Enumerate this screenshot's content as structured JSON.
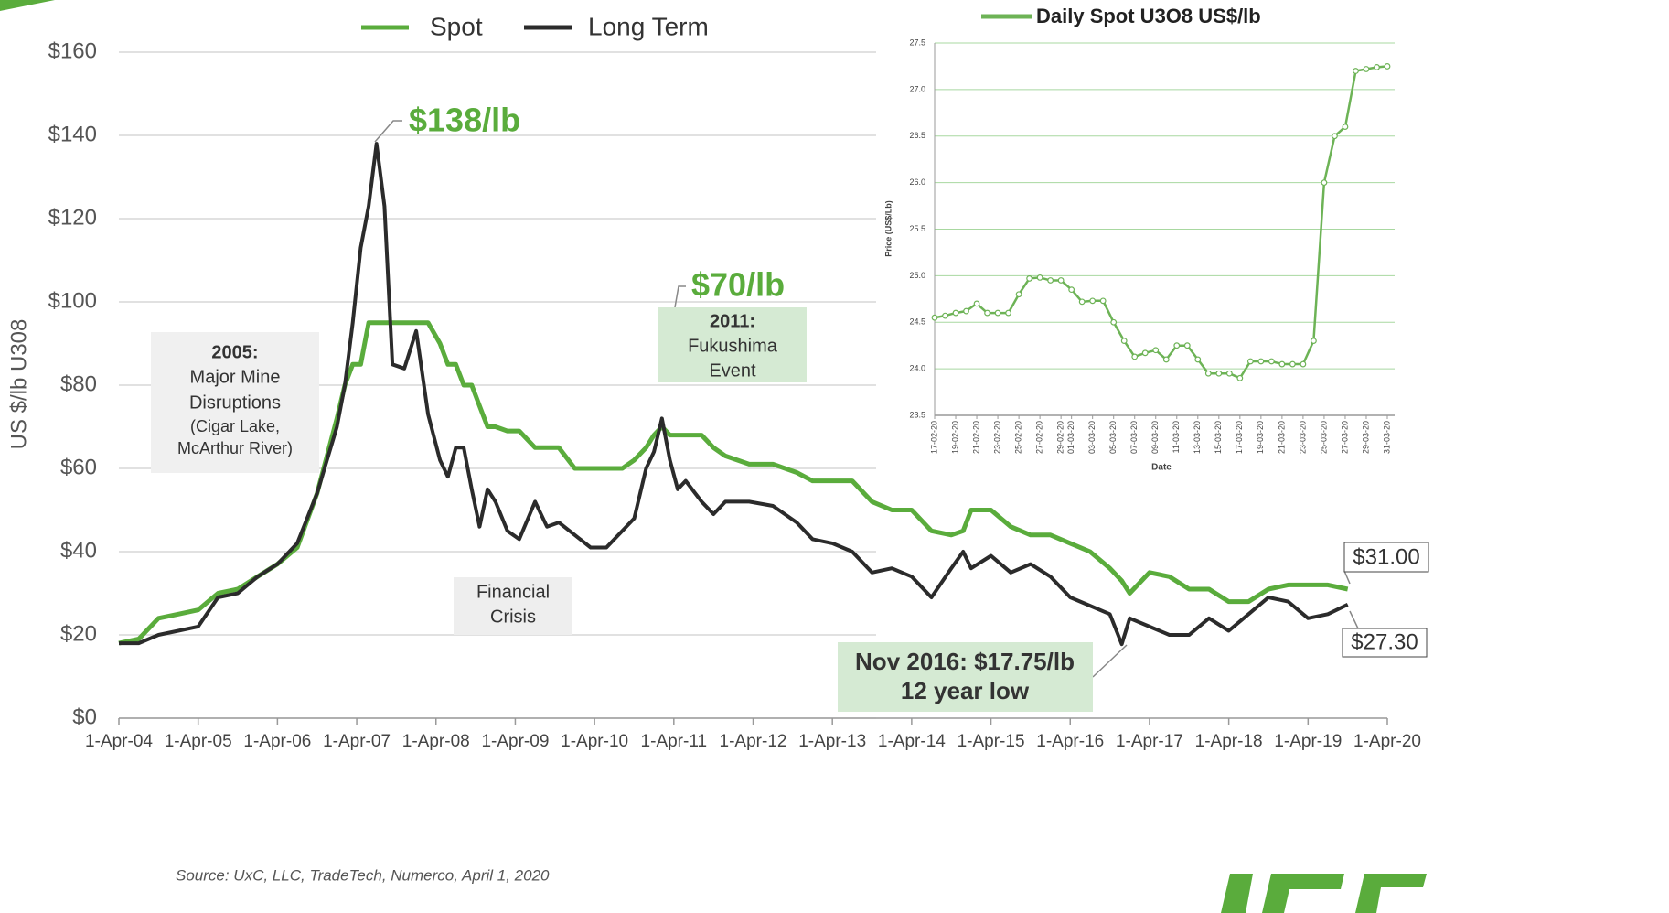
{
  "chart_data": [
    {
      "type": "line",
      "y_label": "US $/lb U308",
      "x": [
        2004.25,
        2004.5,
        2004.75,
        2005.0,
        2005.25,
        2005.5,
        2005.75,
        2006.0,
        2006.25,
        2006.5,
        2006.75,
        2007.0,
        2007.1,
        2007.2,
        2007.3,
        2007.4,
        2007.5,
        2007.6,
        2007.7,
        2007.85,
        2008.0,
        2008.15,
        2008.3,
        2008.4,
        2008.5,
        2008.6,
        2008.7,
        2008.8,
        2008.9,
        2009.0,
        2009.15,
        2009.3,
        2009.5,
        2009.65,
        2009.8,
        2010.0,
        2010.2,
        2010.4,
        2010.6,
        2010.75,
        2010.9,
        2011.0,
        2011.1,
        2011.2,
        2011.3,
        2011.4,
        2011.6,
        2011.75,
        2011.9,
        2012.2,
        2012.5,
        2012.8,
        2013.0,
        2013.25,
        2013.5,
        2013.75,
        2014.0,
        2014.25,
        2014.5,
        2014.75,
        2014.9,
        2015.0,
        2015.25,
        2015.5,
        2015.75,
        2016.0,
        2016.25,
        2016.5,
        2016.75,
        2016.9,
        2017.0,
        2017.25,
        2017.5,
        2017.75,
        2018.0,
        2018.25,
        2018.5,
        2018.75,
        2019.0,
        2019.25,
        2019.5,
        2019.75
      ],
      "series": [
        {
          "name": "Spot",
          "color": "#5aac3c",
          "values": [
            18,
            19,
            24,
            25,
            26,
            30,
            31,
            34,
            37,
            41,
            54,
            72,
            80,
            85,
            85,
            95,
            95,
            95,
            95,
            95,
            95,
            95,
            90,
            85,
            85,
            80,
            80,
            75,
            70,
            70,
            69,
            69,
            65,
            65,
            65,
            60,
            60,
            60,
            60,
            62,
            65,
            68,
            70,
            68,
            68,
            68,
            68,
            65,
            63,
            61,
            61,
            59,
            57,
            57,
            57,
            52,
            50,
            50,
            45,
            44,
            45,
            50,
            50,
            46,
            44,
            44,
            42,
            40,
            36,
            33,
            30,
            35,
            34,
            31,
            31,
            28,
            28,
            31,
            32,
            32,
            32,
            31
          ]
        },
        {
          "name": "Long Term",
          "color": "#2b2b2b",
          "values": [
            18,
            18,
            20,
            21,
            22,
            29,
            30,
            34,
            37,
            42,
            54,
            70,
            80,
            95,
            113,
            123,
            138,
            123,
            85,
            84,
            93,
            73,
            62,
            58,
            65,
            65,
            55,
            46,
            55,
            52,
            45,
            43,
            52,
            46,
            47,
            44,
            41,
            41,
            45,
            48,
            60,
            64,
            72,
            62,
            55,
            57,
            52,
            49,
            52,
            52,
            51,
            47,
            43,
            42,
            40,
            35,
            36,
            34,
            29,
            36,
            40,
            36,
            39,
            35,
            37,
            34,
            29,
            27,
            25,
            17.75,
            24,
            22,
            20,
            20,
            24,
            21,
            25,
            29,
            28,
            24,
            25,
            27.3
          ]
        }
      ],
      "xlim": [
        2004.25,
        2020.25
      ],
      "xticks": [
        {
          "value": 2004.25,
          "label": "1-Apr-04"
        },
        {
          "value": 2005.25,
          "label": "1-Apr-05"
        },
        {
          "value": 2006.25,
          "label": "1-Apr-06"
        },
        {
          "value": 2007.25,
          "label": "1-Apr-07"
        },
        {
          "value": 2008.25,
          "label": "1-Apr-08"
        },
        {
          "value": 2009.25,
          "label": "1-Apr-09"
        },
        {
          "value": 2010.25,
          "label": "1-Apr-10"
        },
        {
          "value": 2011.25,
          "label": "1-Apr-11"
        },
        {
          "value": 2012.25,
          "label": "1-Apr-12"
        },
        {
          "value": 2013.25,
          "label": "1-Apr-13"
        },
        {
          "value": 2014.25,
          "label": "1-Apr-14"
        },
        {
          "value": 2015.25,
          "label": "1-Apr-15"
        },
        {
          "value": 2016.25,
          "label": "1-Apr-16"
        },
        {
          "value": 2017.25,
          "label": "1-Apr-17"
        },
        {
          "value": 2018.25,
          "label": "1-Apr-18"
        },
        {
          "value": 2019.25,
          "label": "1-Apr-19"
        },
        {
          "value": 2020.25,
          "label": "1-Apr-20"
        }
      ],
      "ylim": [
        0,
        160
      ],
      "yticks": [
        {
          "value": 0,
          "label": "$0"
        },
        {
          "value": 20,
          "label": "$20"
        },
        {
          "value": 40,
          "label": "$40"
        },
        {
          "value": 60,
          "label": "$60"
        },
        {
          "value": 80,
          "label": "$80"
        },
        {
          "value": 100,
          "label": "$100"
        },
        {
          "value": 120,
          "label": "$120"
        },
        {
          "value": 140,
          "label": "$140"
        },
        {
          "value": 160,
          "label": "$160"
        }
      ],
      "grid": true,
      "annotations": [
        {
          "lines": [
            "$138/lb"
          ]
        },
        {
          "lines": [
            "$70/lb"
          ]
        },
        {
          "lines": [
            "2005:",
            "Major Mine",
            "Disruptions",
            "(Cigar Lake,",
            "McArthur River)"
          ]
        },
        {
          "lines": [
            "2011:",
            "Fukushima",
            "Event"
          ]
        },
        {
          "lines": [
            "Financial",
            "Crisis"
          ]
        },
        {
          "lines": [
            "Nov 2016: $17.75/lb",
            "12 year low"
          ]
        },
        {
          "lines": [
            "$31.00"
          ]
        },
        {
          "lines": [
            "$27.30"
          ]
        }
      ]
    },
    {
      "type": "line",
      "markers": true,
      "x_label": "Date",
      "y_label": "Price (US$/Lb)",
      "categories": [
        "17-02-20",
        null,
        "19-02-20",
        null,
        "21-02-20",
        null,
        "23-02-20",
        null,
        "25-02-20",
        null,
        "27-02-20",
        null,
        "29-02-20",
        "01-03-20",
        null,
        "03-03-20",
        null,
        "05-03-20",
        null,
        "07-03-20",
        null,
        "09-03-20",
        null,
        "11-03-20",
        null,
        "13-03-20",
        null,
        "15-03-20",
        null,
        "17-03-20",
        null,
        "19-03-20",
        null,
        "21-03-20",
        null,
        "23-03-20",
        null,
        "25-03-20",
        null,
        "27-03-20",
        null,
        "29-03-20",
        null,
        "31-03-20"
      ],
      "series": [
        {
          "name": "Daily Spot U3O8 US$/lb",
          "color": "#6db356",
          "values": [
            24.55,
            24.57,
            24.6,
            24.62,
            24.7,
            24.6,
            24.6,
            24.6,
            24.8,
            24.97,
            24.98,
            24.95,
            24.95,
            24.85,
            24.72,
            24.73,
            24.73,
            24.5,
            24.3,
            24.13,
            24.17,
            24.2,
            24.1,
            24.25,
            24.25,
            24.1,
            23.95,
            23.95,
            23.95,
            23.9,
            24.08,
            24.08,
            24.08,
            24.05,
            24.05,
            24.05,
            24.3,
            26.0,
            26.5,
            26.6,
            27.2,
            27.22,
            27.24,
            27.25
          ]
        }
      ],
      "ylim": [
        23.5,
        27.5
      ],
      "yticks": [
        23.5,
        {
          "value": 24,
          "label": "24.0"
        },
        24.5,
        {
          "value": 25,
          "label": "25.0"
        },
        25.5,
        {
          "value": 26,
          "label": "26.0"
        },
        26.5,
        {
          "value": 27,
          "label": "27.0"
        },
        27.5
      ],
      "grid": true
    }
  ],
  "source": "Source: UxC, LLC, TradeTech, Numerco, April 1, 2020"
}
